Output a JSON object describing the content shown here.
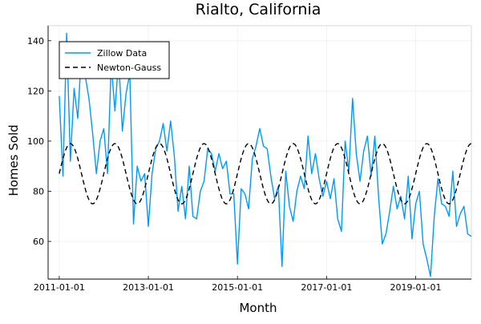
{
  "chart_data": {
    "type": "line",
    "title": "Rialto, California",
    "xlabel": "Month",
    "ylabel": "Homes Sold",
    "ylim": [
      45,
      146
    ],
    "xlim_months": [
      -3,
      111
    ],
    "x_ticks": [
      {
        "label": "2011-01-01",
        "month": 0
      },
      {
        "label": "2013-01-01",
        "month": 24
      },
      {
        "label": "2015-01-01",
        "month": 48
      },
      {
        "label": "2017-01-01",
        "month": 72
      },
      {
        "label": "2019-01-01",
        "month": 96
      }
    ],
    "y_ticks": [
      60,
      80,
      100,
      120,
      140
    ],
    "grid": true,
    "legend_position": "top-left",
    "series": [
      {
        "name": "Zillow Data",
        "color": "#009af9",
        "dash": "solid",
        "start": "2011-01-01",
        "values": [
          118,
          86,
          143,
          92,
          121,
          109,
          136,
          126,
          117,
          103,
          87,
          100,
          105,
          87,
          131,
          112,
          133,
          104,
          119,
          127,
          67,
          90,
          84,
          87,
          66,
          87,
          97,
          100,
          107,
          96,
          108,
          94,
          72,
          82,
          69,
          90,
          70,
          69,
          80,
          84,
          97,
          95,
          88,
          95,
          89,
          92,
          79,
          79,
          51,
          81,
          79,
          73,
          93,
          98,
          105,
          98,
          97,
          86,
          77,
          82,
          50,
          88,
          74,
          68,
          80,
          86,
          81,
          102,
          87,
          95,
          85,
          78,
          84,
          77,
          85,
          69,
          64,
          100,
          88,
          117,
          95,
          84,
          96,
          102,
          86,
          102,
          78,
          59,
          63,
          72,
          82,
          73,
          78,
          69,
          86,
          61,
          75,
          80,
          59,
          53,
          46,
          70,
          85,
          75,
          74,
          70,
          88,
          66,
          71,
          74,
          63,
          62
        ]
      },
      {
        "name": "Newton-Gauss",
        "color": "#000000",
        "dash": "dashed",
        "model": {
          "type": "sinusoid",
          "mean": 87,
          "amplitude": 12,
          "period_months": 12,
          "peak_month": 3
        },
        "points": 111
      }
    ]
  }
}
